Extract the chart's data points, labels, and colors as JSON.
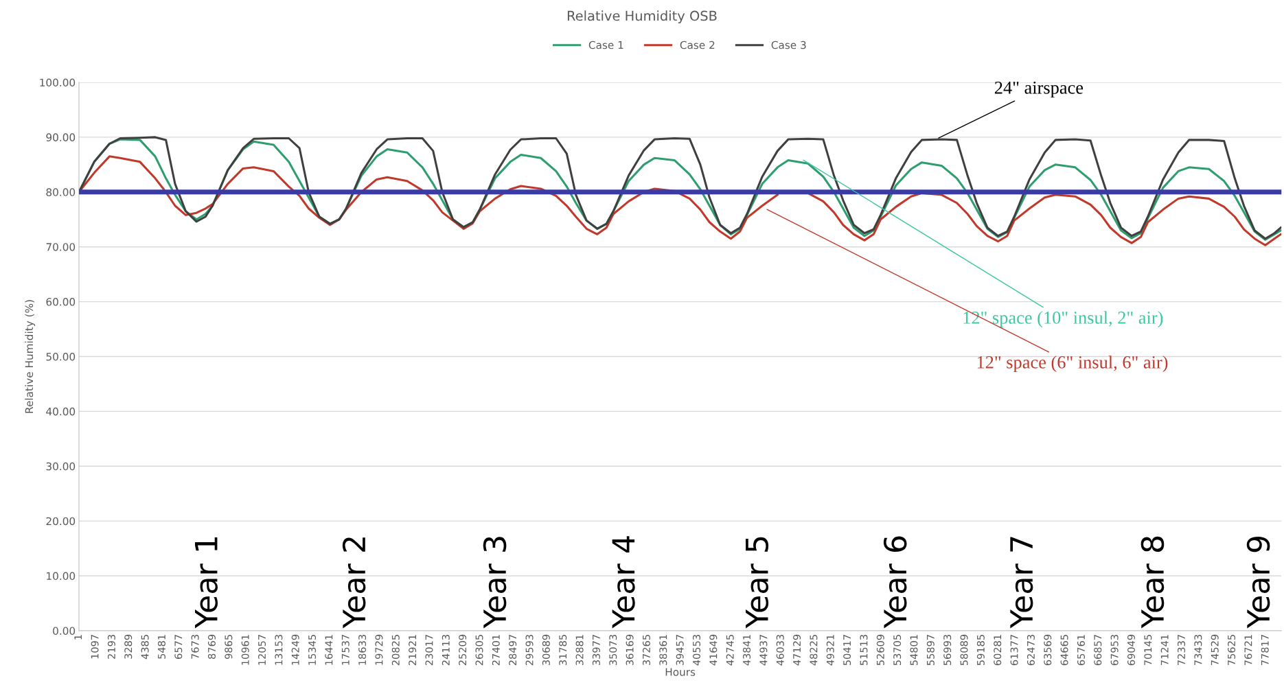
{
  "chart_data": {
    "type": "line",
    "title": "Relative Humidity OSB",
    "xlabel": "Hours",
    "ylabel": "Relative Humidity (%)",
    "x": [
      1,
      1000,
      2000,
      2700,
      4000,
      5000,
      5700,
      6300,
      7000,
      7700,
      8300,
      8760,
      9760,
      10760,
      11460,
      12760,
      13760,
      14460,
      15060,
      15760,
      16460,
      17060,
      17520,
      18520,
      19520,
      20220,
      21520,
      22520,
      23220,
      23820,
      24520,
      25220,
      25820,
      26280,
      27280,
      28280,
      28980,
      30280,
      31280,
      31980,
      32580,
      33280,
      33980,
      34580,
      35040,
      36040,
      37040,
      37740,
      39040,
      40040,
      40740,
      41340,
      42040,
      42740,
      43340,
      43800,
      44800,
      45800,
      46500,
      47800,
      48800,
      49500,
      50100,
      50800,
      51500,
      52100,
      52560,
      53560,
      54560,
      55260,
      56560,
      57560,
      58260,
      58860,
      59560,
      60260,
      60860,
      61320,
      62320,
      63320,
      64020,
      65320,
      66320,
      67020,
      67620,
      68320,
      69020,
      69620,
      70080,
      71080,
      72080,
      72780,
      74080,
      75080,
      75780,
      76380,
      77080,
      77780,
      78380,
      78800
    ],
    "series": [
      {
        "name": "Case 1",
        "color": "#2e9e6e",
        "values": [
          80,
          85.5,
          88.8,
          89.6,
          89.5,
          86.5,
          82.5,
          79.5,
          76.5,
          75,
          76,
          77.5,
          84,
          87.8,
          89.2,
          88.6,
          85.5,
          82,
          79,
          75.5,
          74.2,
          75,
          77,
          83,
          86.5,
          87.8,
          87.2,
          84.5,
          81.5,
          78.5,
          75,
          73.6,
          74.5,
          76.8,
          82.5,
          85.5,
          86.8,
          86.2,
          83.8,
          81,
          78,
          74.8,
          73.3,
          74.2,
          76.5,
          82,
          85,
          86.2,
          85.8,
          83.2,
          80.5,
          77.5,
          74,
          72.3,
          73.3,
          75.8,
          81.5,
          84.5,
          85.8,
          85.2,
          82.8,
          80,
          77,
          73.5,
          72,
          73,
          75.5,
          81.2,
          84.2,
          85.4,
          84.8,
          82.5,
          79.8,
          76.8,
          73.3,
          71.8,
          72.7,
          75.3,
          81,
          84,
          85,
          84.5,
          82.2,
          79.5,
          76.5,
          73,
          71.6,
          72.5,
          75.2,
          80.8,
          83.8,
          84.5,
          84.2,
          82,
          79.3,
          76.3,
          72.8,
          71.3,
          72.3,
          73
        ]
      },
      {
        "name": "Case 2",
        "color": "#c0392b",
        "values": [
          80,
          83.5,
          86.5,
          86.2,
          85.5,
          82.5,
          80,
          77.5,
          75.8,
          76.2,
          77,
          77.8,
          81.5,
          84.3,
          84.5,
          83.8,
          81,
          79.3,
          77,
          75.3,
          74,
          75,
          76.8,
          80,
          82.3,
          82.7,
          82,
          80.3,
          78.5,
          76.3,
          74.8,
          73.3,
          74.3,
          76.5,
          78.8,
          80.5,
          81.1,
          80.6,
          79.3,
          77.5,
          75.5,
          73.3,
          72.3,
          73.5,
          76,
          78.3,
          80,
          80.6,
          80.2,
          78.8,
          76.8,
          74.5,
          72.8,
          71.5,
          72.8,
          75.3,
          77.5,
          79.5,
          null,
          79.8,
          78.3,
          76.3,
          74,
          72.3,
          71.2,
          72.3,
          75,
          77.3,
          79.2,
          79.8,
          79.5,
          78,
          76,
          73.8,
          72,
          71,
          72,
          74.8,
          77,
          79,
          79.5,
          79.2,
          77.7,
          75.8,
          73.5,
          71.8,
          70.7,
          71.8,
          74.5,
          76.8,
          78.8,
          79.2,
          78.8,
          77.3,
          75.5,
          73.2,
          71.5,
          70.3,
          71.5,
          72.3
        ]
      },
      {
        "name": "Case 3",
        "color": "#404040",
        "values": [
          80,
          85.5,
          88.8,
          89.8,
          89.9,
          90,
          89.5,
          81.5,
          76.5,
          74.6,
          75.5,
          77.5,
          84,
          88,
          89.7,
          89.8,
          89.8,
          88,
          80,
          75.5,
          74.2,
          75,
          77,
          83.5,
          87.8,
          89.6,
          89.8,
          89.8,
          87.5,
          80,
          75,
          73.6,
          74.5,
          76.8,
          83.2,
          87.7,
          89.6,
          89.8,
          89.8,
          87,
          79.5,
          74.8,
          73.3,
          74.2,
          76.5,
          83,
          87.6,
          89.6,
          89.8,
          89.7,
          85,
          79,
          74,
          72.5,
          73.5,
          76,
          82.8,
          87.5,
          89.6,
          89.7,
          89.6,
          83,
          78.5,
          74,
          72.5,
          73.2,
          75.8,
          82.5,
          87.3,
          89.5,
          89.6,
          89.5,
          83,
          78,
          73.5,
          72,
          72.8,
          75.5,
          82.3,
          87.2,
          89.5,
          89.6,
          89.4,
          83,
          78,
          73.5,
          72,
          72.8,
          75.5,
          82.3,
          87.2,
          89.5,
          89.5,
          89.3,
          82.5,
          77.5,
          73,
          71.5,
          72.5,
          73.5
        ]
      }
    ],
    "ref_lines": [
      {
        "axis": "y",
        "value": 80,
        "color": "#3b3ba6"
      }
    ],
    "annotations": [
      {
        "text": "24\" airspace",
        "x": 56250,
        "y": 89.7
      },
      {
        "text": "12\" space (10\" insul, 2\" air)",
        "x": 47400,
        "y": 86
      },
      {
        "text": "12\" space (6\" insul, 6\" air)",
        "x": 45000,
        "y": 77
      },
      "Year 1",
      "Year 2",
      "Year 3",
      "Year 4",
      "Year 5",
      "Year 6",
      "Year 7",
      "Year 8",
      "Year 9"
    ],
    "xlim": [
      1,
      78840
    ],
    "xticks": [
      1,
      1097,
      2193,
      3289,
      4385,
      5481,
      6577,
      7673,
      8769,
      9865,
      10961,
      12057,
      13153,
      14249,
      15345,
      16441,
      17537,
      18633,
      19729,
      20825,
      21921,
      23017,
      24113,
      25209,
      26305,
      27401,
      28497,
      29593,
      30689,
      31785,
      32881,
      33977,
      35073,
      36169,
      37265,
      38361,
      39457,
      40553,
      41649,
      42745,
      43841,
      44937,
      46033,
      47129,
      48225,
      49321,
      50417,
      51513,
      52609,
      53705,
      54801,
      55897,
      56993,
      58089,
      59185,
      60281,
      61377,
      62473,
      63569,
      64665,
      65761,
      66857,
      67953,
      69049,
      70145,
      71241,
      72337,
      73433,
      74529,
      75625,
      76721,
      77817
    ],
    "ylim": [
      0,
      100
    ],
    "yticks": [
      {
        "value": 0,
        "label": "0.00"
      },
      {
        "value": 10,
        "label": "10.00"
      },
      {
        "value": 20,
        "label": "20.00"
      },
      {
        "value": 30,
        "label": "30.00"
      },
      {
        "value": 40,
        "label": "40.00"
      },
      {
        "value": 50,
        "label": "50.00"
      },
      {
        "value": 60,
        "label": "60.00"
      },
      {
        "value": 70,
        "label": "70.00"
      },
      {
        "value": 80,
        "label": "80.00"
      },
      {
        "value": 90,
        "label": "90.00"
      },
      {
        "value": 100,
        "label": "100.00"
      }
    ],
    "grid": "y",
    "legend": "top",
    "marker": "none",
    "line_style": "solid"
  }
}
